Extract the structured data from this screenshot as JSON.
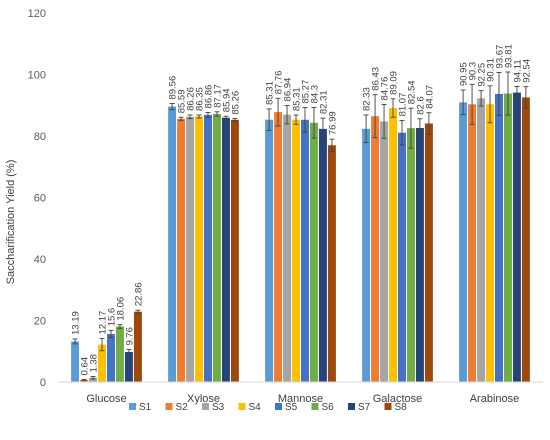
{
  "chart_data": {
    "type": "bar",
    "title": "",
    "xlabel": "",
    "ylabel": "Saccharification Yield (%)",
    "ylim": [
      0,
      120
    ],
    "yticks": [
      0,
      20,
      40,
      60,
      80,
      100,
      120
    ],
    "grid": false,
    "legend_position": "bottom",
    "categories": [
      "Glucose",
      "Xylose",
      "Mannose",
      "Galactose",
      "Arabinose"
    ],
    "series": [
      {
        "name": "S1",
        "color": "#5B9BD5",
        "values": [
          13.19,
          89.56,
          85.31,
          82.33,
          90.95
        ],
        "errors": [
          0.8,
          1.0,
          3.5,
          4.5,
          4.0
        ],
        "labels": [
          "13.19",
          "89.56",
          "85.31",
          "82.33",
          "90.95"
        ]
      },
      {
        "name": "S2",
        "color": "#ED7D31",
        "values": [
          0.64,
          85.59,
          87.76,
          86.43,
          90.3
        ],
        "errors": [
          0.2,
          0.5,
          4.5,
          7.0,
          6.5
        ],
        "labels": [
          "0.64",
          "85.59",
          "87.76",
          "86.43",
          "90.3"
        ]
      },
      {
        "name": "S3",
        "color": "#A5A5A5",
        "values": [
          1.38,
          86.26,
          86.94,
          84.76,
          92.25
        ],
        "errors": [
          0.4,
          0.6,
          3.0,
          5.5,
          2.5
        ],
        "labels": [
          "1.38",
          "86.26",
          "86.94",
          "84.76",
          "92.25"
        ]
      },
      {
        "name": "S4",
        "color": "#FFC000",
        "values": [
          12.17,
          86.35,
          85.31,
          89.09,
          90.31
        ],
        "errors": [
          2.0,
          0.5,
          1.5,
          3.0,
          6.0
        ],
        "labels": [
          "12.17",
          "86.35",
          "85.31",
          "89.09",
          "90.31"
        ]
      },
      {
        "name": "S5",
        "color": "#4472C4",
        "values": [
          15.6,
          86.86,
          85.27,
          81.07,
          93.67
        ],
        "errors": [
          1.2,
          0.8,
          4.0,
          4.0,
          7.0
        ],
        "labels": [
          "15.6",
          "86.86",
          "85.27",
          "81.07",
          "93.67"
        ]
      },
      {
        "name": "S6",
        "color": "#70AD47",
        "values": [
          18.06,
          87.17,
          84.3,
          82.54,
          93.81
        ],
        "errors": [
          0.6,
          0.7,
          5.0,
          6.5,
          7.0
        ],
        "labels": [
          "18.06",
          "87.17",
          "84.3",
          "82.54",
          "93.81"
        ]
      },
      {
        "name": "S7",
        "color": "#264478",
        "values": [
          9.76,
          85.94,
          82.31,
          82.6,
          94.11
        ],
        "errors": [
          0.8,
          0.5,
          3.5,
          3.0,
          2.0
        ],
        "labels": [
          "9.76",
          "85.94",
          "82.31",
          "82.6",
          "94.11"
        ]
      },
      {
        "name": "S8",
        "color": "#9E480E",
        "values": [
          22.86,
          85.26,
          76.99,
          84.07,
          92.54
        ],
        "errors": [
          0.5,
          0.4,
          2.0,
          3.5,
          3.5
        ],
        "labels": [
          "22.86",
          "85.26",
          "76.99",
          "84.07",
          "92.54"
        ]
      }
    ]
  }
}
